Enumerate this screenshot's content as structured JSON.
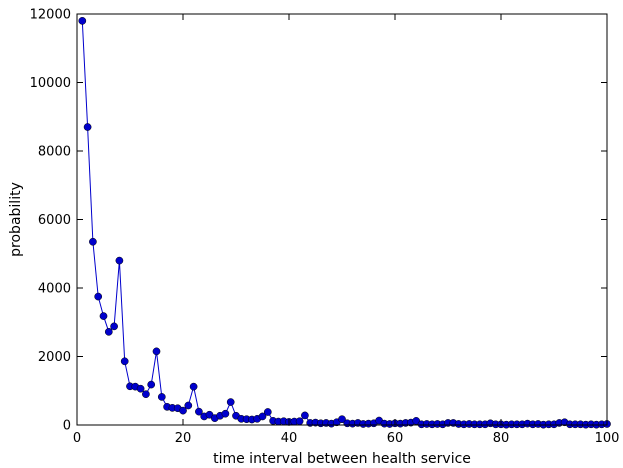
{
  "chart_data": {
    "type": "line",
    "title": "",
    "xlabel": "time interval between health service",
    "ylabel": "probability",
    "xlim": [
      0,
      100
    ],
    "ylim": [
      0,
      12000
    ],
    "xticks": [
      0,
      20,
      40,
      60,
      80,
      100
    ],
    "yticks": [
      0,
      2000,
      4000,
      6000,
      8000,
      10000,
      12000
    ],
    "grid": false,
    "colors": {
      "series": "#0000cc",
      "axes": "#000000"
    },
    "marker": "circle",
    "series": [
      {
        "x": [
          1,
          2,
          3,
          4,
          5,
          6,
          7,
          8,
          9,
          10,
          11,
          12,
          13,
          14,
          15,
          16,
          17,
          18,
          19,
          20,
          21,
          22,
          23,
          24,
          25,
          26,
          27,
          28,
          29,
          30,
          31,
          32,
          33,
          34,
          35,
          36,
          37,
          38,
          39,
          40,
          41,
          42,
          43,
          44,
          45,
          46,
          47,
          48,
          49,
          50,
          51,
          52,
          53,
          54,
          55,
          56,
          57,
          58,
          59,
          60,
          61,
          62,
          63,
          64,
          65,
          66,
          67,
          68,
          69,
          70,
          71,
          72,
          73,
          74,
          75,
          76,
          77,
          78,
          79,
          80,
          81,
          82,
          83,
          84,
          85,
          86,
          87,
          88,
          89,
          90,
          91,
          92,
          93,
          94,
          95,
          96,
          97,
          98,
          99,
          100
        ],
        "values": [
          11800,
          8700,
          5350,
          3750,
          3180,
          2720,
          2880,
          4800,
          1860,
          1130,
          1120,
          1060,
          900,
          1180,
          2150,
          820,
          530,
          500,
          490,
          420,
          570,
          1120,
          390,
          250,
          300,
          200,
          270,
          330,
          670,
          270,
          180,
          170,
          160,
          180,
          250,
          380,
          120,
          100,
          110,
          90,
          100,
          110,
          280,
          60,
          70,
          50,
          60,
          40,
          80,
          170,
          50,
          40,
          60,
          30,
          40,
          50,
          130,
          40,
          30,
          50,
          40,
          60,
          70,
          120,
          20,
          30,
          20,
          30,
          20,
          60,
          60,
          30,
          20,
          30,
          20,
          20,
          20,
          50,
          20,
          20,
          10,
          20,
          20,
          20,
          40,
          20,
          30,
          10,
          20,
          20,
          60,
          80,
          20,
          20,
          20,
          10,
          20,
          10,
          20,
          30
        ]
      }
    ]
  }
}
